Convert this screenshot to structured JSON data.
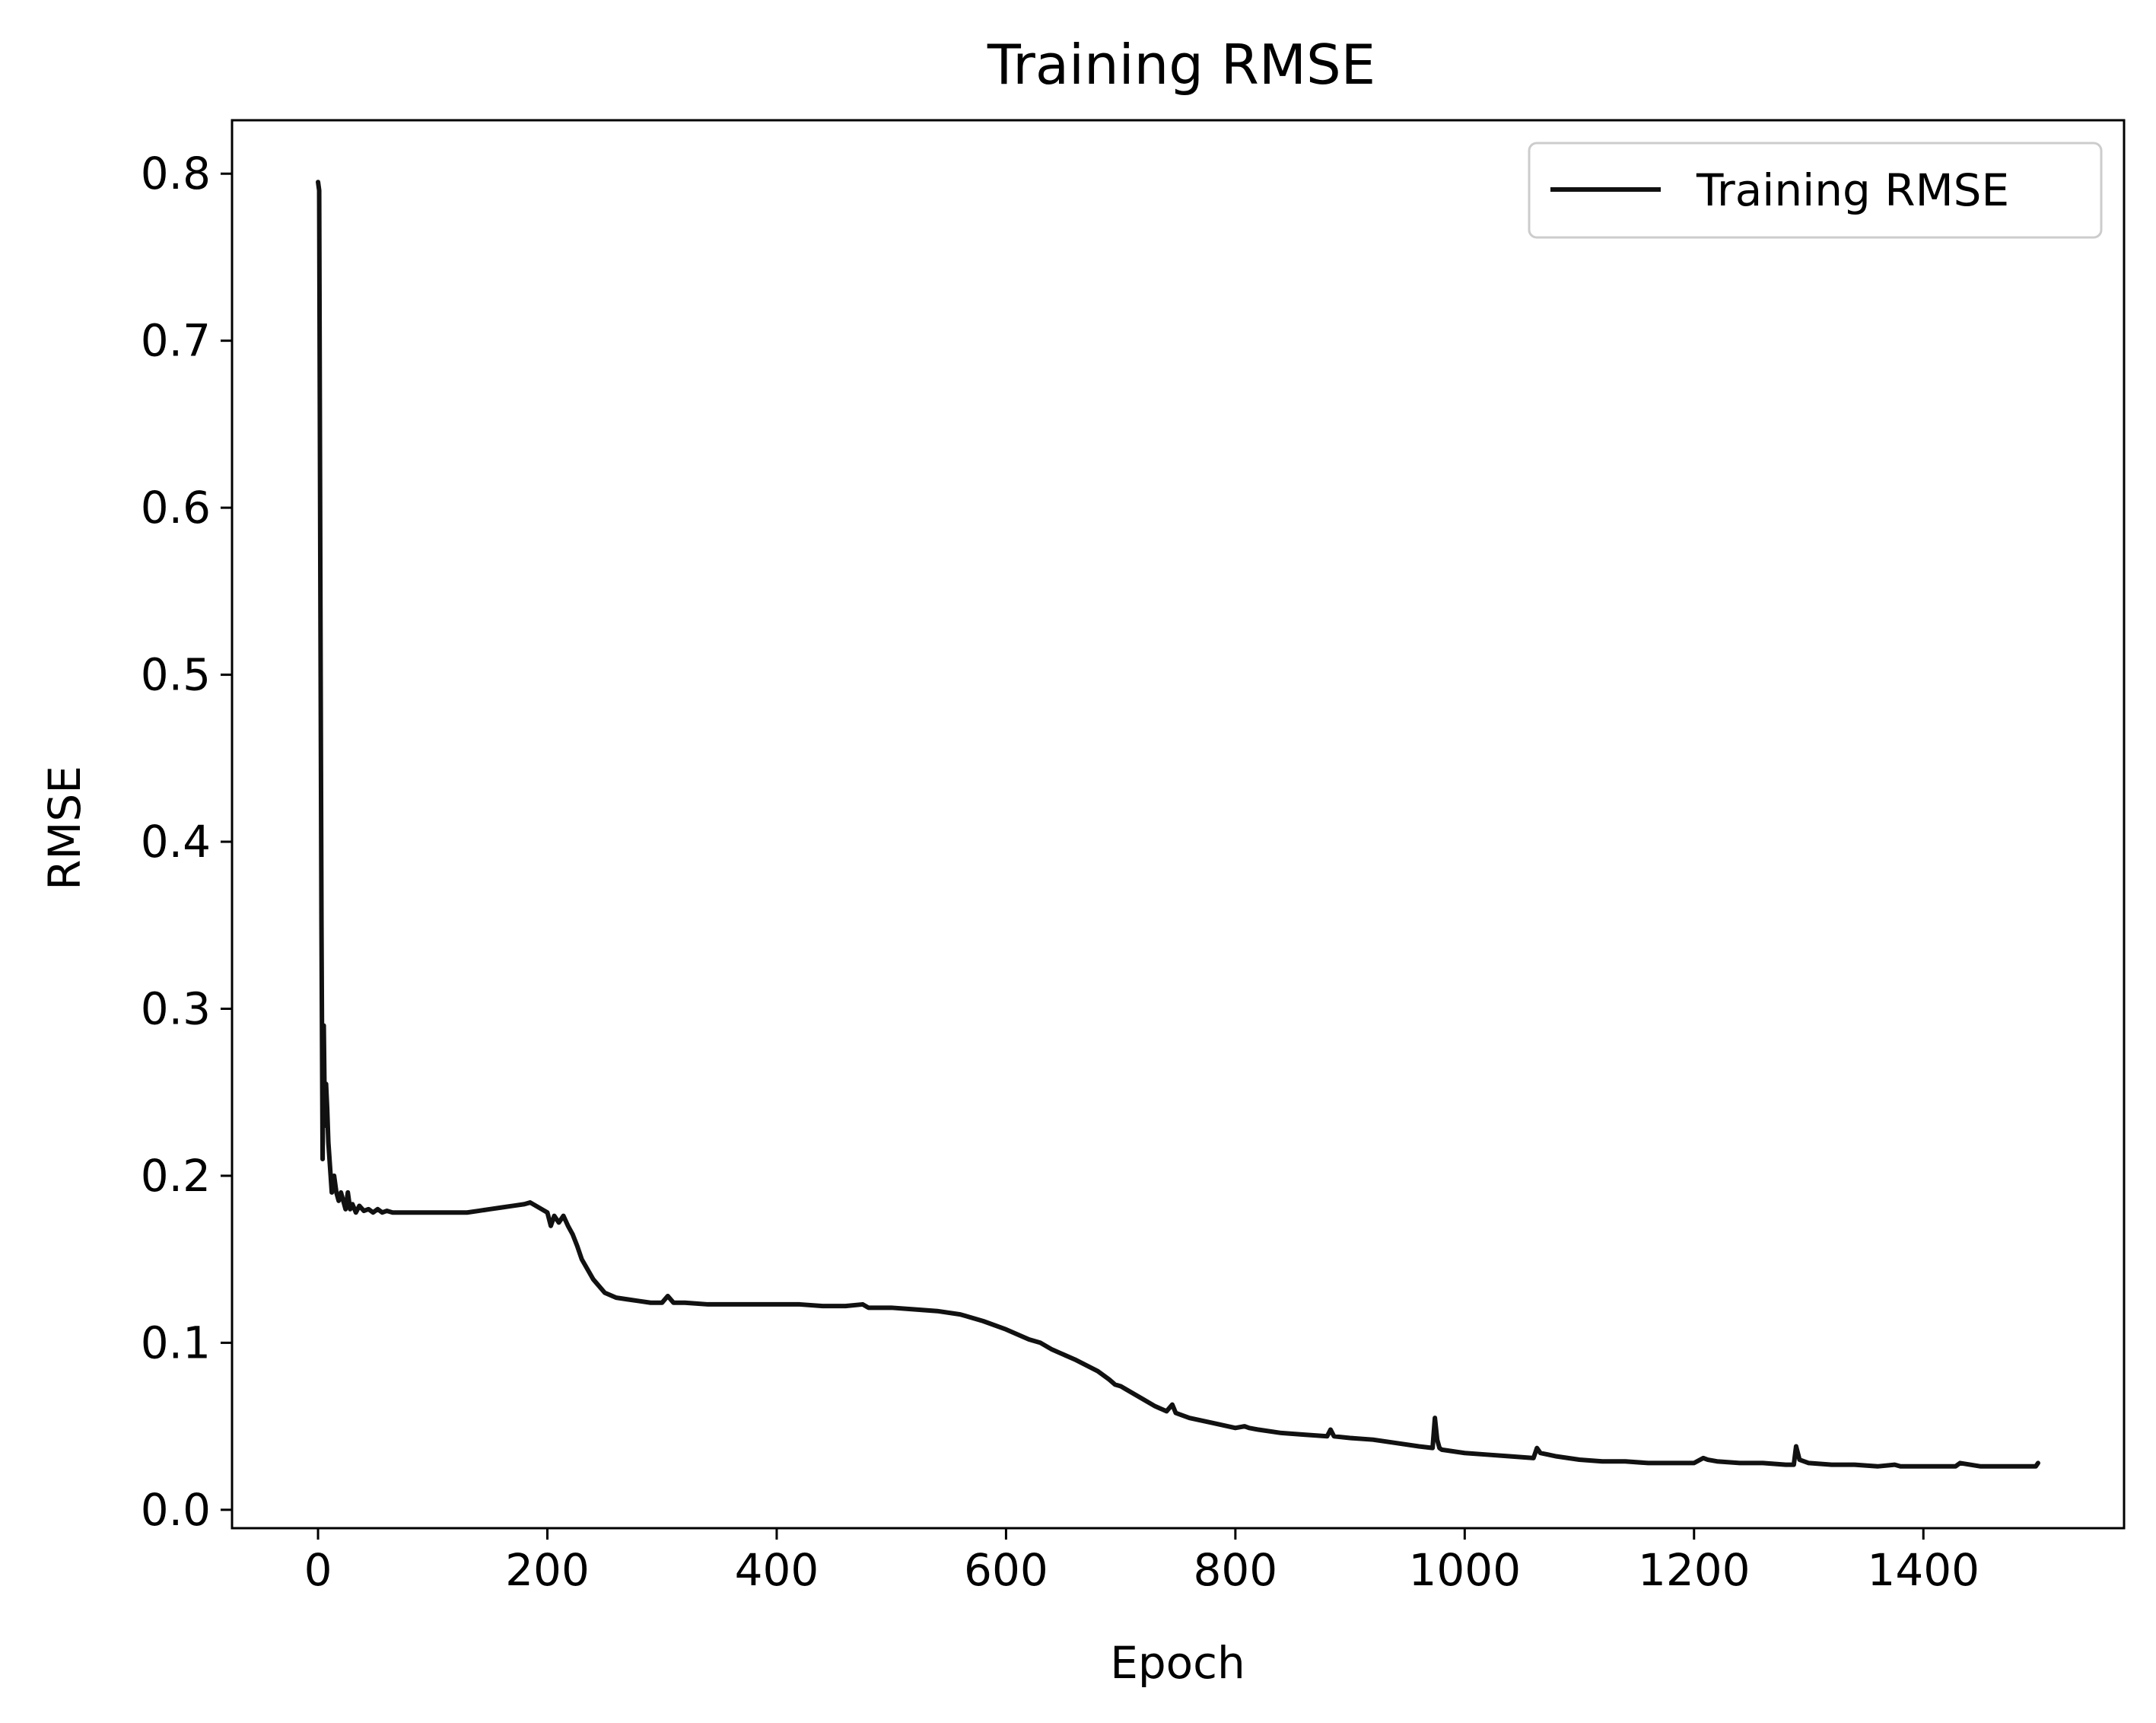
{
  "chart_data": {
    "type": "line",
    "title": "Training RMSE",
    "xlabel": "Epoch",
    "ylabel": "RMSE",
    "xlim": [
      -75,
      1575
    ],
    "ylim": [
      -0.011,
      0.832
    ],
    "x_ticks": [
      0,
      200,
      400,
      600,
      800,
      1000,
      1200,
      1400
    ],
    "x_tick_labels": [
      "0",
      "200",
      "400",
      "600",
      "800",
      "1000",
      "1200",
      "1400"
    ],
    "y_ticks": [
      0.0,
      0.1,
      0.2,
      0.3,
      0.4,
      0.5,
      0.6,
      0.7,
      0.8
    ],
    "y_tick_labels": [
      "0.0",
      "0.1",
      "0.2",
      "0.3",
      "0.4",
      "0.5",
      "0.6",
      "0.7",
      "0.8"
    ],
    "grid": false,
    "legend_position": "top-right",
    "line_color": "#111111",
    "series": [
      {
        "name": "Training RMSE",
        "x": [
          0,
          1,
          2,
          3,
          4,
          5,
          6,
          7,
          8,
          9,
          10,
          12,
          14,
          16,
          18,
          20,
          22,
          24,
          26,
          28,
          30,
          33,
          36,
          40,
          44,
          48,
          52,
          56,
          60,
          65,
          70,
          75,
          80,
          90,
          100,
          110,
          120,
          130,
          140,
          150,
          160,
          170,
          180,
          185,
          190,
          195,
          200,
          203,
          206,
          210,
          214,
          218,
          222,
          226,
          230,
          240,
          250,
          260,
          270,
          280,
          290,
          300,
          305,
          310,
          320,
          340,
          360,
          380,
          400,
          420,
          440,
          460,
          475,
          480,
          500,
          520,
          540,
          560,
          580,
          600,
          620,
          630,
          640,
          660,
          680,
          690,
          695,
          700,
          705,
          710,
          720,
          730,
          740,
          745,
          748,
          752,
          760,
          780,
          800,
          808,
          812,
          820,
          840,
          860,
          880,
          883,
          886,
          900,
          920,
          940,
          960,
          972,
          974,
          976,
          978,
          980,
          1000,
          1020,
          1040,
          1060,
          1063,
          1066,
          1080,
          1100,
          1120,
          1140,
          1160,
          1180,
          1200,
          1208,
          1212,
          1220,
          1240,
          1260,
          1280,
          1287,
          1289,
          1292,
          1300,
          1320,
          1340,
          1360,
          1375,
          1380,
          1400,
          1420,
          1428,
          1432,
          1450,
          1470,
          1490,
          1498,
          1500
        ],
        "y": [
          0.795,
          0.79,
          0.56,
          0.35,
          0.21,
          0.29,
          0.23,
          0.255,
          0.24,
          0.22,
          0.21,
          0.19,
          0.2,
          0.19,
          0.185,
          0.19,
          0.185,
          0.18,
          0.19,
          0.18,
          0.183,
          0.178,
          0.182,
          0.179,
          0.18,
          0.178,
          0.18,
          0.178,
          0.179,
          0.178,
          0.178,
          0.178,
          0.178,
          0.178,
          0.178,
          0.178,
          0.178,
          0.178,
          0.179,
          0.18,
          0.181,
          0.182,
          0.183,
          0.184,
          0.182,
          0.18,
          0.178,
          0.17,
          0.176,
          0.172,
          0.176,
          0.17,
          0.165,
          0.158,
          0.15,
          0.138,
          0.13,
          0.127,
          0.126,
          0.125,
          0.124,
          0.124,
          0.128,
          0.124,
          0.124,
          0.123,
          0.123,
          0.123,
          0.123,
          0.123,
          0.122,
          0.122,
          0.123,
          0.121,
          0.121,
          0.12,
          0.119,
          0.117,
          0.113,
          0.108,
          0.102,
          0.1,
          0.096,
          0.09,
          0.083,
          0.078,
          0.075,
          0.074,
          0.072,
          0.07,
          0.066,
          0.062,
          0.059,
          0.063,
          0.058,
          0.057,
          0.055,
          0.052,
          0.049,
          0.05,
          0.049,
          0.048,
          0.046,
          0.045,
          0.044,
          0.048,
          0.044,
          0.043,
          0.042,
          0.04,
          0.038,
          0.037,
          0.055,
          0.042,
          0.037,
          0.036,
          0.034,
          0.033,
          0.032,
          0.031,
          0.037,
          0.034,
          0.032,
          0.03,
          0.029,
          0.029,
          0.028,
          0.028,
          0.028,
          0.031,
          0.03,
          0.029,
          0.028,
          0.028,
          0.027,
          0.027,
          0.038,
          0.03,
          0.028,
          0.027,
          0.027,
          0.026,
          0.027,
          0.026,
          0.026,
          0.026,
          0.026,
          0.028,
          0.026,
          0.026,
          0.026,
          0.026,
          0.028
        ]
      }
    ]
  }
}
